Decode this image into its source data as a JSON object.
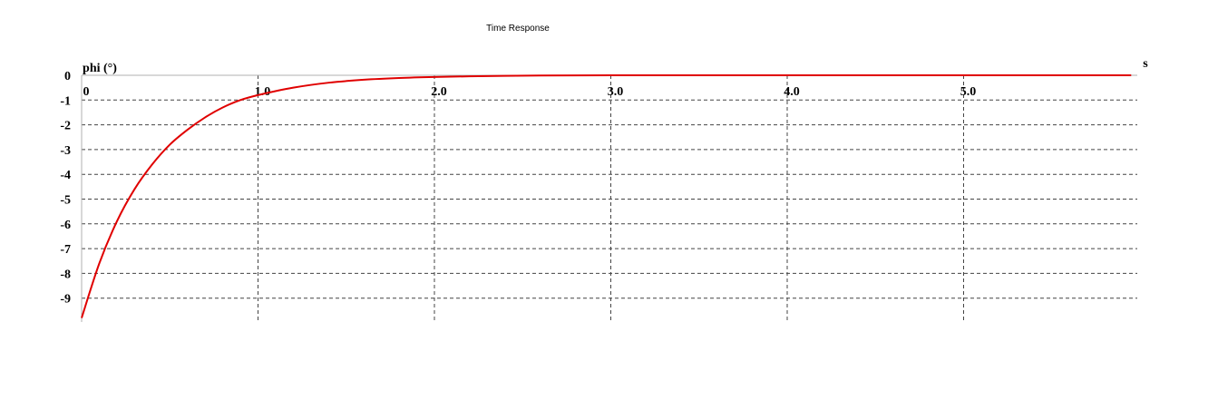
{
  "chart_data": {
    "type": "line",
    "title": "Time Response",
    "xlabel": "s",
    "ylabel": "phi (°)",
    "xlim": [
      0,
      5.95
    ],
    "ylim": [
      -10,
      0
    ],
    "x_ticks": [
      {
        "value": 0,
        "label": "0"
      },
      {
        "value": 1,
        "label": "1.0"
      },
      {
        "value": 2,
        "label": "2.0"
      },
      {
        "value": 3,
        "label": "3.0"
      },
      {
        "value": 4,
        "label": "4.0"
      },
      {
        "value": 5,
        "label": "5.0"
      }
    ],
    "y_ticks": [
      {
        "value": 0,
        "label": "0"
      },
      {
        "value": -1,
        "label": "-1"
      },
      {
        "value": -2,
        "label": "-2"
      },
      {
        "value": -3,
        "label": "-3"
      },
      {
        "value": -4,
        "label": "-4"
      },
      {
        "value": -5,
        "label": "-5"
      },
      {
        "value": -6,
        "label": "-6"
      },
      {
        "value": -7,
        "label": "-7"
      },
      {
        "value": -8,
        "label": "-8"
      },
      {
        "value": -9,
        "label": "-9"
      }
    ],
    "grid": true,
    "series": [
      {
        "color": "#e00000",
        "x": [
          0,
          0.1,
          0.2,
          0.3,
          0.4,
          0.5,
          0.6,
          0.7,
          0.8,
          0.9,
          1.0,
          1.2,
          1.4,
          1.6,
          1.8,
          2.0,
          2.3,
          2.6,
          3.0,
          3.5,
          4.0,
          4.5,
          5.0,
          5.5,
          5.95
        ],
        "y": [
          -9.8,
          -7.6,
          -5.9,
          -4.6,
          -3.6,
          -2.8,
          -2.2,
          -1.7,
          -1.3,
          -1.0,
          -0.8,
          -0.5,
          -0.3,
          -0.18,
          -0.11,
          -0.07,
          -0.03,
          -0.01,
          0,
          0,
          0,
          0,
          0,
          0,
          0
        ]
      }
    ]
  }
}
